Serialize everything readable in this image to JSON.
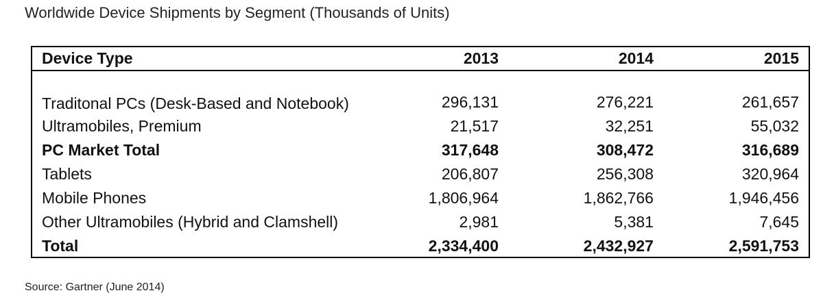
{
  "title": "Worldwide Device Shipments by Segment (Thousands of Units)",
  "source": "Source: Gartner (June 2014)",
  "chart_data": {
    "type": "table",
    "title": "Worldwide Device Shipments by Segment (Thousands of Units)",
    "columns": [
      "Device Type",
      "2013",
      "2014",
      "2015"
    ],
    "rows": [
      {
        "label": "Traditonal PCs (Desk-Based and Notebook)",
        "values": [
          "296,131",
          "276,221",
          "261,657"
        ],
        "bold": false
      },
      {
        "label": "Ultramobiles, Premium",
        "values": [
          "21,517",
          "32,251",
          "55,032"
        ],
        "bold": false
      },
      {
        "label": "PC Market Total",
        "values": [
          "317,648",
          "308,472",
          "316,689"
        ],
        "bold": true
      },
      {
        "label": "Tablets",
        "values": [
          "206,807",
          "256,308",
          "320,964"
        ],
        "bold": false
      },
      {
        "label": "Mobile Phones",
        "values": [
          "1,806,964",
          "1,862,766",
          "1,946,456"
        ],
        "bold": false
      },
      {
        "label": "Other Ultramobiles (Hybrid and Clamshell)",
        "values": [
          "2,981",
          "5,381",
          "7,645"
        ],
        "bold": false
      },
      {
        "label": "Total",
        "values": [
          "2,334,400",
          "2,432,927",
          "2,591,753"
        ],
        "bold": true
      }
    ]
  }
}
